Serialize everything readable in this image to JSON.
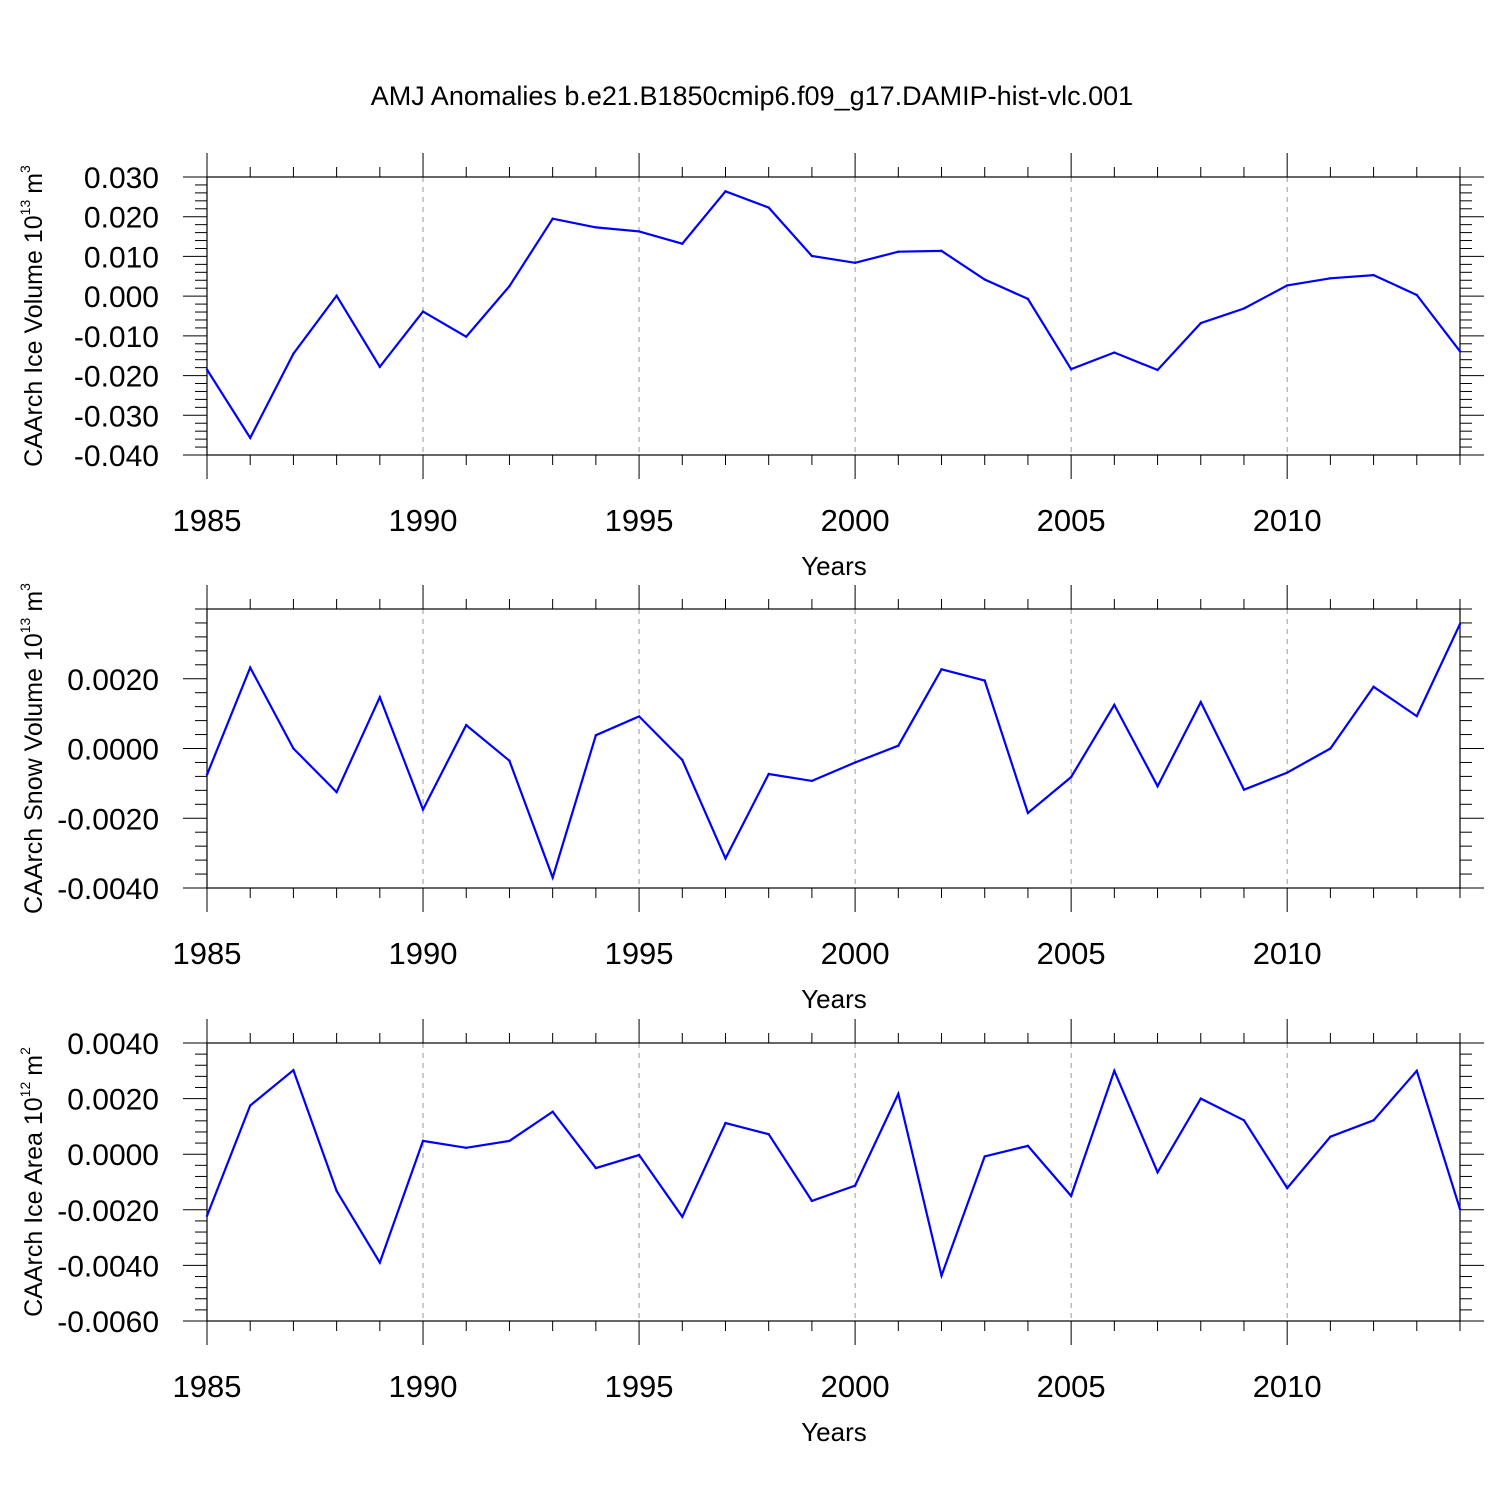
{
  "title": "AMJ Anomalies b.e21.B1850cmip6.f09_g17.DAMIP-hist-vlc.001",
  "colors": {
    "line": "#0000ff",
    "axis": "#000000",
    "grid": "#999999"
  },
  "chart_data": [
    {
      "type": "line",
      "title": "AMJ Anomalies b.e21.B1850cmip6.f09_g17.DAMIP-hist-vlc.001",
      "xlabel": "Years",
      "ylabel_main": "CAArch Ice Volume 10",
      "ylabel_exp": "13",
      "ylabel_unit": "m",
      "ylabel_unit_exp": "3",
      "xlim": [
        1985,
        2014
      ],
      "ylim": [
        -0.04,
        0.03
      ],
      "grid": "x-dashed",
      "xticks": [
        1985,
        1990,
        1995,
        2000,
        2005,
        2010
      ],
      "xtick_labels": [
        "1985",
        "1990",
        "1995",
        "2000",
        "2005",
        "2010"
      ],
      "yticks": [
        -0.04,
        -0.03,
        -0.02,
        -0.01,
        0.0,
        0.01,
        0.02,
        0.03
      ],
      "ytick_labels": [
        "-0.040",
        "-0.030",
        "-0.020",
        "-0.010",
        "0.000",
        "0.010",
        "0.020",
        "0.030"
      ],
      "x": [
        1985,
        1986,
        1987,
        1988,
        1989,
        1990,
        1991,
        1992,
        1993,
        1994,
        1995,
        1996,
        1997,
        1998,
        1999,
        2000,
        2001,
        2002,
        2003,
        2004,
        2005,
        2006,
        2007,
        2008,
        2009,
        2010,
        2011,
        2012,
        2013,
        2014
      ],
      "series": [
        {
          "name": "CAArch Ice Volume",
          "values": [
            -0.0185,
            -0.0357,
            -0.0145,
            0.0001,
            -0.0178,
            -0.0039,
            -0.0102,
            0.0025,
            0.0195,
            0.0173,
            0.0163,
            0.0132,
            0.0264,
            0.0223,
            0.0101,
            0.0084,
            0.0112,
            0.0114,
            0.0042,
            -0.0007,
            -0.0184,
            -0.0142,
            -0.0186,
            -0.0068,
            -0.0031,
            0.0027,
            0.0045,
            0.0053,
            0.0003,
            -0.0139
          ]
        }
      ]
    },
    {
      "type": "line",
      "xlabel": "Years",
      "ylabel_main": "CAArch Snow Volume 10",
      "ylabel_exp": "13",
      "ylabel_unit": "m",
      "ylabel_unit_exp": "3",
      "xlim": [
        1985,
        2014
      ],
      "ylim": [
        -0.004,
        0.004
      ],
      "grid": "x-dashed",
      "xticks": [
        1985,
        1990,
        1995,
        2000,
        2005,
        2010
      ],
      "xtick_labels": [
        "1985",
        "1990",
        "1995",
        "2000",
        "2005",
        "2010"
      ],
      "yticks": [
        -0.004,
        -0.002,
        0.0,
        0.002
      ],
      "ytick_labels": [
        "-0.0040",
        "-0.0020",
        "0.0000",
        "0.0020"
      ],
      "x": [
        1985,
        1986,
        1987,
        1988,
        1989,
        1990,
        1991,
        1992,
        1993,
        1994,
        1995,
        1996,
        1997,
        1998,
        1999,
        2000,
        2001,
        2002,
        2003,
        2004,
        2005,
        2006,
        2007,
        2008,
        2009,
        2010,
        2011,
        2012,
        2013,
        2014
      ],
      "series": [
        {
          "name": "CAArch Snow Volume",
          "values": [
            -0.00075,
            0.00232,
            0.0,
            -0.00125,
            0.00147,
            -0.00175,
            0.00067,
            -0.00035,
            -0.0037,
            0.00038,
            0.00092,
            -0.00033,
            -0.00315,
            -0.00073,
            -0.00093,
            -0.0004,
            8e-05,
            0.00227,
            0.00195,
            -0.00185,
            -0.00082,
            0.00125,
            -0.00108,
            0.00133,
            -0.00118,
            -0.00069,
            0.0,
            0.00177,
            0.00093,
            0.00357
          ]
        }
      ]
    },
    {
      "type": "line",
      "xlabel": "Years",
      "ylabel_main": "CAArch Ice Area 10",
      "ylabel_exp": "12",
      "ylabel_unit": "m",
      "ylabel_unit_exp": "2",
      "xlim": [
        1985,
        2014
      ],
      "ylim": [
        -0.006,
        0.004
      ],
      "grid": "x-dashed",
      "xticks": [
        1985,
        1990,
        1995,
        2000,
        2005,
        2010
      ],
      "xtick_labels": [
        "1985",
        "1990",
        "1995",
        "2000",
        "2005",
        "2010"
      ],
      "yticks": [
        -0.006,
        -0.004,
        -0.002,
        0.0,
        0.002,
        0.004
      ],
      "ytick_labels": [
        "-0.0060",
        "-0.0040",
        "-0.0020",
        "0.0000",
        "0.0020",
        "0.0040"
      ],
      "x": [
        1985,
        1986,
        1987,
        1988,
        1989,
        1990,
        1991,
        1992,
        1993,
        1994,
        1995,
        1996,
        1997,
        1998,
        1999,
        2000,
        2001,
        2002,
        2003,
        2004,
        2005,
        2006,
        2007,
        2008,
        2009,
        2010,
        2011,
        2012,
        2013,
        2014
      ],
      "series": [
        {
          "name": "CAArch Ice Area",
          "values": [
            -0.00222,
            0.00175,
            0.00302,
            -0.00132,
            -0.0039,
            0.00048,
            0.00023,
            0.00048,
            0.00153,
            -0.0005,
            -3e-05,
            -0.00225,
            0.00112,
            0.00072,
            -0.00168,
            -0.00113,
            0.00217,
            -0.00437,
            -8e-05,
            0.0003,
            -0.0015,
            0.003,
            -0.00065,
            0.002,
            0.00122,
            -0.00122,
            0.00063,
            0.00122,
            0.003,
            -0.00198
          ]
        }
      ]
    }
  ]
}
